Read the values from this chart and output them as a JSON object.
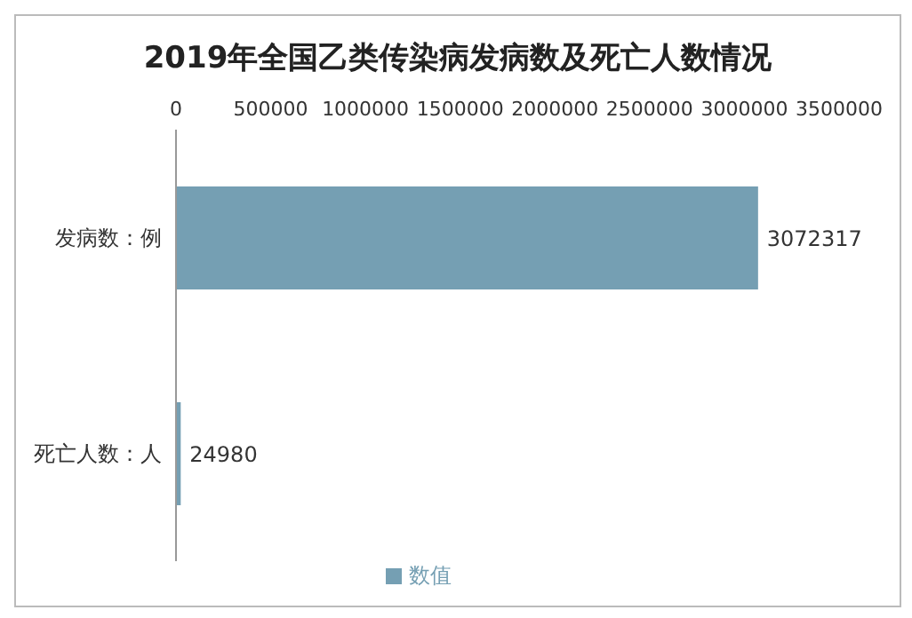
{
  "chart_data": {
    "type": "bar",
    "orientation": "horizontal",
    "title": "2019年全国乙类传染病发病数及死亡人数情况",
    "categories": [
      "发病数：例",
      "死亡人数：人"
    ],
    "series": [
      {
        "name": "数值",
        "color": "#759fb3",
        "values": [
          3072317,
          24980
        ]
      }
    ],
    "xlim": [
      0,
      3500000
    ],
    "xticks": [
      0,
      500000,
      1000000,
      1500000,
      2000000,
      2500000,
      3000000,
      3500000
    ],
    "data_labels": true,
    "grid": false,
    "legend": "bottom"
  }
}
